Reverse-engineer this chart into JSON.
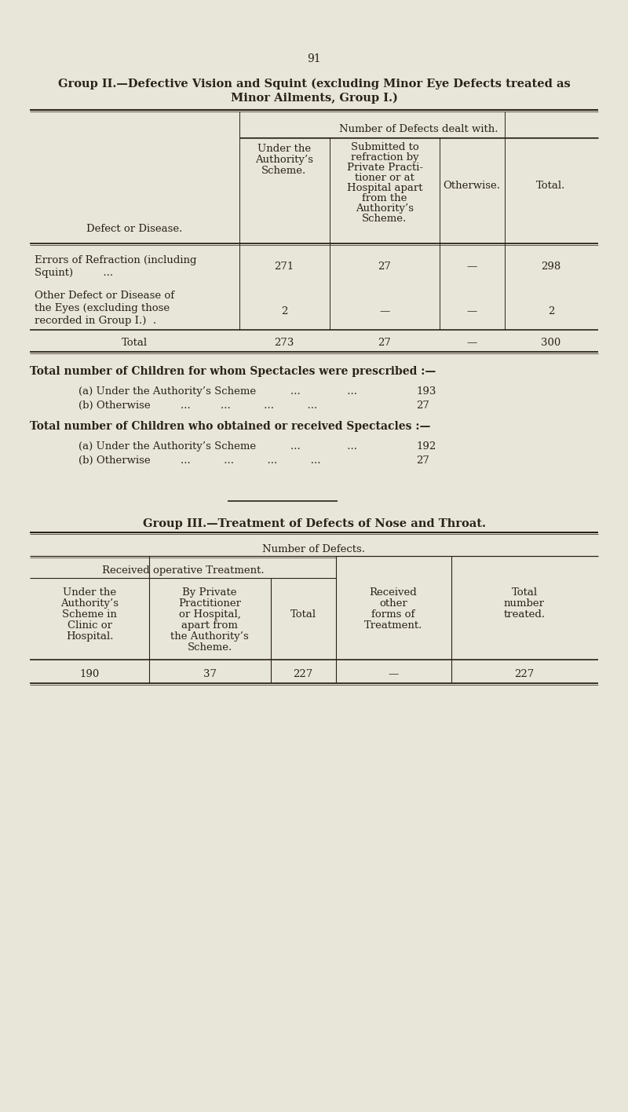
{
  "bg_color": "#e8e6d8",
  "text_color": "#2a2318",
  "page_number": "91",
  "group2_title_line1": "Group II.—Defective Vision and Squint (excluding Minor Eye Defects treated as",
  "group2_title_line2": "Minor Ailments, Group I.)",
  "col_header_span": "Number of Defects dealt with.",
  "col1_header": "Defect or Disease.",
  "col2_header_lines": [
    "Under the",
    "Authority’s",
    "Scheme."
  ],
  "col3_header_lines": [
    "Submitted to",
    "refraction by",
    "Private Practi-",
    "tioner or at",
    "Hospital apart",
    "from the",
    "Authority’s",
    "Scheme."
  ],
  "col4_header": "Otherwise.",
  "col5_header": "Total.",
  "row1_label_lines": [
    "Errors of Refraction (including",
    "Squint)         ..."
  ],
  "row1_col2": "271",
  "row1_col3": "27",
  "row1_col4": "—",
  "row1_col5": "298",
  "row2_label_lines": [
    "Other Defect or Disease of",
    "the Eyes (excluding those",
    "recorded in Group I.)  ."
  ],
  "row2_col2": "2",
  "row2_col3": "—",
  "row2_col4": "—",
  "row2_col5": "2",
  "total_label": "Total",
  "total_col2": "273",
  "total_col3": "27",
  "total_col4": "—",
  "total_col5": "300",
  "spectacles_prescribed_title": "Total number of Children for whom Spectacles were prescribed :—",
  "spectacles_prescribed_a_label": "(a) Under the Authority’s Scheme",
  "spectacles_prescribed_a_dots": "...              ...",
  "spectacles_prescribed_a_val": "193",
  "spectacles_prescribed_b_label": "(b) Otherwise",
  "spectacles_prescribed_b_dots": "...         ...          ...          ...",
  "spectacles_prescribed_b_val": "27",
  "spectacles_obtained_title": "Total number of Children who obtained or received Spectacles :—",
  "spectacles_obtained_a_label": "(a) Under the Authority’s Scheme",
  "spectacles_obtained_a_dots": "...              ...",
  "spectacles_obtained_a_val": "192",
  "spectacles_obtained_b_label": "(b) Otherwise",
  "spectacles_obtained_b_dots": "...          ...          ...          ...",
  "spectacles_obtained_b_val": "27",
  "group3_title": "Group III.—Treatment of Defects of Nose and Throat.",
  "g3_span_header": "Number of Defects.",
  "g3_sub_span": "Received operative Treatment.",
  "g3_col1_lines": [
    "Under the",
    "Authority’s",
    "Scheme in",
    "Clinic or",
    "Hospital."
  ],
  "g3_col2_lines": [
    "By Private",
    "Practitioner",
    "or Hospital,",
    "apart from",
    "the Authority’s",
    "Scheme."
  ],
  "g3_col3": "Total",
  "g3_col4_lines": [
    "Received",
    "other",
    "forms of",
    "Treatment."
  ],
  "g3_col5_lines": [
    "Total",
    "number",
    "treated."
  ],
  "g3_row1_col1": "190",
  "g3_row1_col2": "37",
  "g3_row1_col3": "227",
  "g3_row1_col4": "—",
  "g3_row1_col5": "227"
}
